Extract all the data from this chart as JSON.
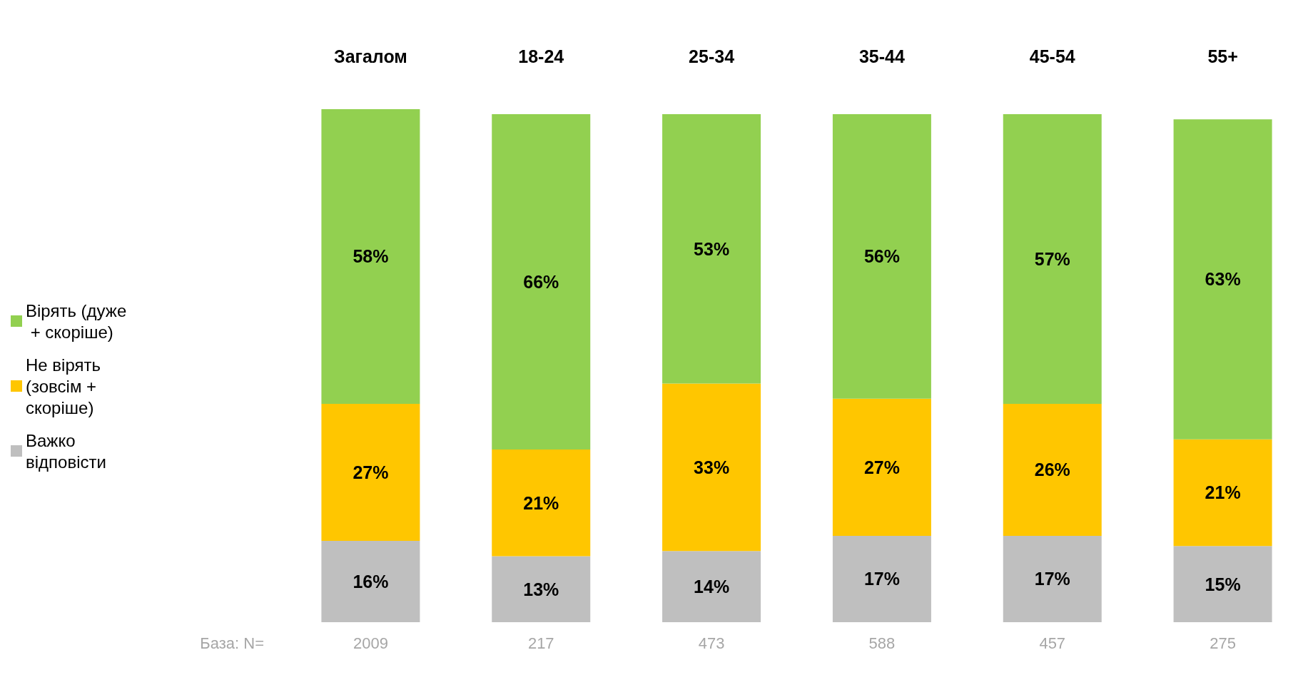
{
  "chart_data": {
    "type": "bar",
    "stacked": true,
    "legend": "left",
    "categories": [
      "Загалом",
      "18-24",
      "25-34",
      "35-44",
      "45-54",
      "55+"
    ],
    "series": [
      {
        "name": "Важко відповісти",
        "color": "#bfbfbf",
        "values": [
          16,
          13,
          14,
          17,
          17,
          15
        ],
        "value_labels": [
          "16%",
          "13%",
          "14%",
          "17%",
          "17%",
          "15%"
        ]
      },
      {
        "name": "Не вірять (зовсім + скоріше)",
        "color": "#ffc600",
        "values": [
          27,
          21,
          33,
          27,
          26,
          21
        ],
        "value_labels": [
          "27%",
          "21%",
          "33%",
          "27%",
          "26%",
          "21%"
        ]
      },
      {
        "name": "Вірять (дуже + скоріше)",
        "color": "#92d050",
        "values": [
          58,
          66,
          53,
          56,
          57,
          63
        ],
        "value_labels": [
          "58%",
          "66%",
          "53%",
          "56%",
          "57%",
          "63%"
        ]
      }
    ],
    "annotations": [
      "База: N=",
      "2009",
      "217",
      "473",
      "588",
      "457",
      "275"
    ]
  }
}
